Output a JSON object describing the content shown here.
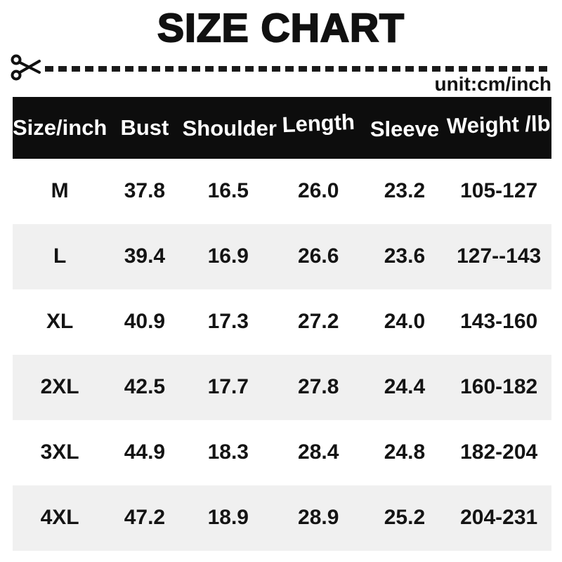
{
  "title": "SIZE CHART",
  "unit_label": "unit:cm/inch",
  "icons": {
    "scissors": "scissors-icon"
  },
  "colors": {
    "header_bg": "#0d0d0d",
    "header_text": "#ffffff",
    "row_stripe": "#f0f0f0",
    "text": "#131313",
    "background": "#ffffff"
  },
  "chart_data": {
    "type": "table",
    "title": "SIZE CHART",
    "unit": "unit:cm/inch",
    "columns": [
      "Size/inch",
      "Bust",
      "Shoulder",
      "Length",
      "Sleeve",
      "Weight /lb"
    ],
    "rows": [
      [
        "M",
        "37.8",
        "16.5",
        "26.0",
        "23.2",
        "105-127"
      ],
      [
        "L",
        "39.4",
        "16.9",
        "26.6",
        "23.6",
        "127--143"
      ],
      [
        "XL",
        "40.9",
        "17.3",
        "27.2",
        "24.0",
        "143-160"
      ],
      [
        "2XL",
        "42.5",
        "17.7",
        "27.8",
        "24.4",
        "160-182"
      ],
      [
        "3XL",
        "44.9",
        "18.3",
        "28.4",
        "24.8",
        "182-204"
      ],
      [
        "4XL",
        "47.2",
        "18.9",
        "28.9",
        "25.2",
        "204-231"
      ]
    ]
  }
}
